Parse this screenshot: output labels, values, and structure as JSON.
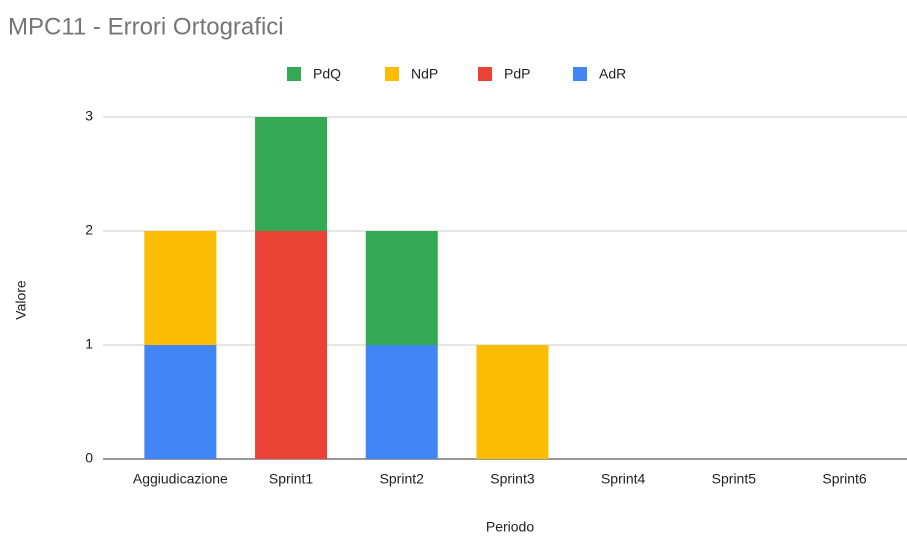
{
  "chart_data": {
    "type": "stacked_bar",
    "title": "MPC11 - Errori Ortografici",
    "x_label": "Periodo",
    "y_label": "Valore",
    "categories": [
      "Aggiudicazione",
      "Sprint1",
      "Sprint2",
      "Sprint3",
      "Sprint4",
      "Sprint5",
      "Sprint6"
    ],
    "series": [
      {
        "name": "PdQ",
        "color": "#34a853",
        "values": [
          0,
          1,
          1,
          0,
          0,
          0,
          0
        ]
      },
      {
        "name": "NdP",
        "color": "#fbbc04",
        "values": [
          1,
          0,
          0,
          1,
          0,
          0,
          0
        ]
      },
      {
        "name": "PdP",
        "color": "#ea4335",
        "values": [
          0,
          2,
          0,
          0,
          0,
          0,
          0
        ]
      },
      {
        "name": "AdR",
        "color": "#4285f4",
        "values": [
          1,
          0,
          1,
          0,
          0,
          0,
          0
        ]
      }
    ],
    "ylim": [
      0,
      3
    ],
    "yticks": [
      0,
      1,
      2,
      3
    ],
    "grid": true,
    "legend": "top"
  }
}
